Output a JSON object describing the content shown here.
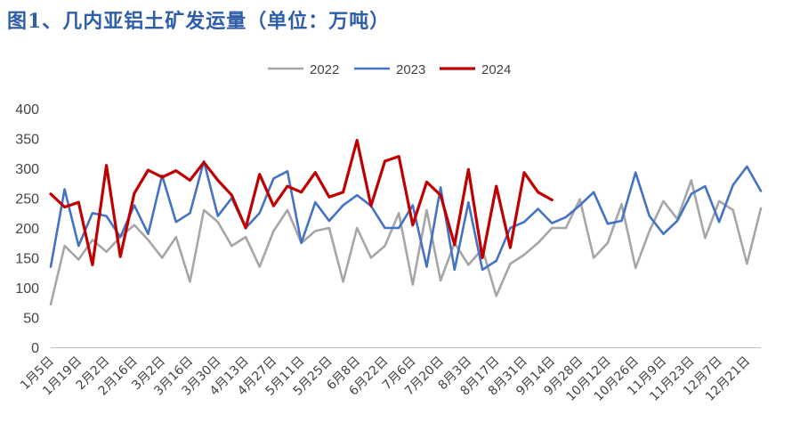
{
  "figure_title": "图1、几内亚铝土矿发运量（单位：万吨）",
  "chart_data": {
    "type": "line",
    "title": "图1、几内亚铝土矿发运量（单位：万吨）",
    "ylim": [
      0,
      400
    ],
    "yticks": [
      0,
      50,
      100,
      150,
      200,
      250,
      300,
      350,
      400
    ],
    "grid": false,
    "legend_position": "top",
    "xtick_labels": [
      "1月5日",
      "1月19日",
      "2月2日",
      "2月16日",
      "3月2日",
      "3月16日",
      "3月30日",
      "4月13日",
      "4月27日",
      "5月11日",
      "5月25日",
      "6月8日",
      "6月22日",
      "7月6日",
      "7月20日",
      "8月3日",
      "8月17日",
      "8月31日",
      "9月14日",
      "9月28日",
      "10月12日",
      "10月26日",
      "11月9日",
      "11月23日",
      "12月7日",
      "12月21日"
    ],
    "series": [
      {
        "name": "2022",
        "color": "#A6A6A6",
        "values": [
          72,
          170,
          147,
          180,
          160,
          185,
          205,
          180,
          150,
          185,
          110,
          230,
          210,
          170,
          185,
          135,
          195,
          230,
          175,
          195,
          200,
          110,
          200,
          150,
          170,
          225,
          105,
          230,
          112,
          175,
          138,
          165,
          86,
          140,
          155,
          175,
          200,
          200,
          248,
          150,
          175,
          240,
          133,
          195,
          245,
          215,
          280,
          183,
          245,
          230,
          140,
          233
        ]
      },
      {
        "name": "2023",
        "color": "#4472C4",
        "values": [
          135,
          265,
          170,
          225,
          220,
          185,
          238,
          190,
          288,
          210,
          225,
          312,
          220,
          250,
          200,
          225,
          283,
          295,
          175,
          243,
          212,
          238,
          255,
          237,
          200,
          200,
          238,
          135,
          268,
          130,
          243,
          130,
          145,
          200,
          210,
          232,
          208,
          218,
          238,
          260,
          207,
          212,
          293,
          220,
          190,
          212,
          257,
          270,
          210,
          272,
          303,
          262
        ]
      },
      {
        "name": "2024",
        "color": "#C00000",
        "values": [
          257,
          235,
          243,
          138,
          305,
          152,
          258,
          297,
          285,
          296,
          280,
          310,
          280,
          255,
          200,
          290,
          237,
          270,
          260,
          293,
          252,
          260,
          347,
          237,
          312,
          320,
          205,
          277,
          255,
          172,
          298,
          150,
          270,
          167,
          293,
          260,
          247
        ]
      }
    ]
  }
}
